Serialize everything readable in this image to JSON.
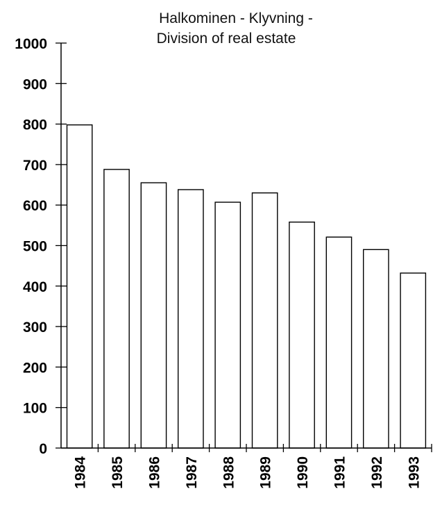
{
  "chart_data": {
    "type": "bar",
    "title_lines": [
      "Halkominen - Klyvning -",
      "Division of real estate"
    ],
    "categories": [
      "1984",
      "1985",
      "1986",
      "1987",
      "1988",
      "1989",
      "1990",
      "1991",
      "1992",
      "1993"
    ],
    "values": [
      798,
      688,
      655,
      638,
      607,
      630,
      558,
      521,
      490,
      432
    ],
    "ylim": [
      0,
      1000
    ],
    "yticks": [
      "0",
      "100",
      "200",
      "300",
      "400",
      "500",
      "600",
      "700",
      "800",
      "900",
      "1000"
    ],
    "grid": false,
    "legend": "none"
  }
}
